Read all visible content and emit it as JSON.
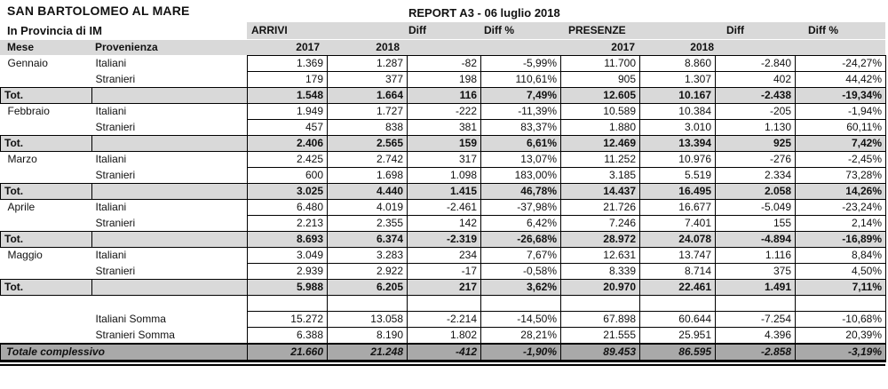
{
  "header": {
    "municipality": "SAN BARTOLOMEO AL MARE",
    "province": "In Provincia di IM",
    "report_title": "REPORT A3 - 06 luglio 2018"
  },
  "columns": {
    "group_arrivi": "ARRIVI",
    "group_presenze": "PRESENZE",
    "diff": "Diff",
    "diff_pct": "Diff %",
    "mese": "Mese",
    "provenienza": "Provenienza",
    "year_2017": "2017",
    "year_2018": "2018"
  },
  "rows": [
    {
      "type": "data",
      "mese": "Gennaio",
      "prov": "Italiani",
      "v": [
        "1.369",
        "1.287",
        "-82",
        "-5,99%",
        "11.700",
        "8.860",
        "-2.840",
        "-24,27%"
      ]
    },
    {
      "type": "data",
      "mese": "",
      "prov": "Stranieri",
      "v": [
        "179",
        "377",
        "198",
        "110,61%",
        "905",
        "1.307",
        "402",
        "44,42%"
      ]
    },
    {
      "type": "tot",
      "label": "Tot.",
      "v": [
        "1.548",
        "1.664",
        "116",
        "7,49%",
        "12.605",
        "10.167",
        "-2.438",
        "-19,34%"
      ]
    },
    {
      "type": "data",
      "mese": "Febbraio",
      "prov": "Italiani",
      "v": [
        "1.949",
        "1.727",
        "-222",
        "-11,39%",
        "10.589",
        "10.384",
        "-205",
        "-1,94%"
      ]
    },
    {
      "type": "data",
      "mese": "",
      "prov": "Stranieri",
      "v": [
        "457",
        "838",
        "381",
        "83,37%",
        "1.880",
        "3.010",
        "1.130",
        "60,11%"
      ]
    },
    {
      "type": "tot",
      "label": "Tot.",
      "v": [
        "2.406",
        "2.565",
        "159",
        "6,61%",
        "12.469",
        "13.394",
        "925",
        "7,42%"
      ]
    },
    {
      "type": "data",
      "mese": "Marzo",
      "prov": "Italiani",
      "v": [
        "2.425",
        "2.742",
        "317",
        "13,07%",
        "11.252",
        "10.976",
        "-276",
        "-2,45%"
      ]
    },
    {
      "type": "data",
      "mese": "",
      "prov": "Stranieri",
      "v": [
        "600",
        "1.698",
        "1.098",
        "183,00%",
        "3.185",
        "5.519",
        "2.334",
        "73,28%"
      ]
    },
    {
      "type": "tot",
      "label": "Tot.",
      "v": [
        "3.025",
        "4.440",
        "1.415",
        "46,78%",
        "14.437",
        "16.495",
        "2.058",
        "14,26%"
      ]
    },
    {
      "type": "data",
      "mese": "Aprile",
      "prov": "Italiani",
      "v": [
        "6.480",
        "4.019",
        "-2.461",
        "-37,98%",
        "21.726",
        "16.677",
        "-5.049",
        "-23,24%"
      ]
    },
    {
      "type": "data",
      "mese": "",
      "prov": "Stranieri",
      "v": [
        "2.213",
        "2.355",
        "142",
        "6,42%",
        "7.246",
        "7.401",
        "155",
        "2,14%"
      ]
    },
    {
      "type": "tot",
      "label": "Tot.",
      "v": [
        "8.693",
        "6.374",
        "-2.319",
        "-26,68%",
        "28.972",
        "24.078",
        "-4.894",
        "-16,89%"
      ]
    },
    {
      "type": "data",
      "mese": "Maggio",
      "prov": "Italiani",
      "v": [
        "3.049",
        "3.283",
        "234",
        "7,67%",
        "12.631",
        "13.747",
        "1.116",
        "8,84%"
      ]
    },
    {
      "type": "data",
      "mese": "",
      "prov": "Stranieri",
      "v": [
        "2.939",
        "2.922",
        "-17",
        "-0,58%",
        "8.339",
        "8.714",
        "375",
        "4,50%"
      ]
    },
    {
      "type": "tot",
      "label": "Tot.",
      "v": [
        "5.988",
        "6.205",
        "217",
        "3,62%",
        "20.970",
        "22.461",
        "1.491",
        "7,11%"
      ]
    },
    {
      "type": "empty",
      "mese": "",
      "prov": "",
      "v": [
        "",
        "",
        "",
        "",
        "",
        "",
        "",
        ""
      ]
    },
    {
      "type": "sum",
      "mese": "",
      "prov": "Italiani Somma",
      "v": [
        "15.272",
        "13.058",
        "-2.214",
        "-14,50%",
        "67.898",
        "60.644",
        "-7.254",
        "-10,68%"
      ]
    },
    {
      "type": "sum",
      "mese": "",
      "prov": "Stranieri Somma",
      "v": [
        "6.388",
        "8.190",
        "1.802",
        "28,21%",
        "21.555",
        "25.951",
        "4.396",
        "20,39%"
      ]
    },
    {
      "type": "grand",
      "label": "Totale complessivo",
      "v": [
        "21.660",
        "21.248",
        "-412",
        "-1,90%",
        "89.453",
        "86.595",
        "-2.858",
        "-3,19%"
      ]
    }
  ]
}
